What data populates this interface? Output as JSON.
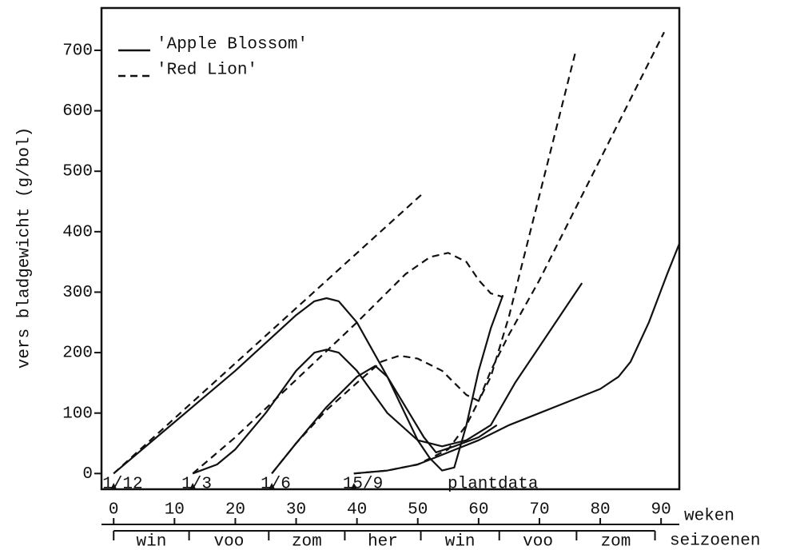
{
  "chart_data": {
    "type": "line",
    "y_label": "vers bladgewicht (g/bol)",
    "x_label": "weken",
    "xlim": [
      -2,
      93
    ],
    "ylim": [
      -26,
      770
    ],
    "xticks": [
      0,
      10,
      20,
      30,
      40,
      50,
      60,
      70,
      80,
      90
    ],
    "yticks": [
      0,
      100,
      200,
      300,
      400,
      500,
      600,
      700
    ],
    "legend": "upper left",
    "color": "#111111",
    "plant_dates": {
      "title": "plantdata",
      "items": [
        {
          "label": "1/12",
          "x": 0
        },
        {
          "label": "1/3",
          "x": 13
        },
        {
          "label": "1/6",
          "x": 26
        },
        {
          "label": "15/9",
          "x": 39.5
        }
      ]
    },
    "seasons": {
      "title": "seizoenen",
      "labels": [
        "win",
        "voo",
        "zom",
        "her",
        "win",
        "voo",
        "zom"
      ],
      "edges": [
        0,
        12.4,
        25.5,
        38,
        50.5,
        63.4,
        76.1,
        89
      ]
    },
    "series": [
      {
        "name": "'Apple Blossom'",
        "style": "solid",
        "curves": [
          {
            "x": [
              0,
              10,
              20,
              30,
              33,
              35,
              37,
              40,
              45,
              50,
              52,
              54,
              56,
              58,
              60,
              62,
              64
            ],
            "values": [
              0,
              85,
              170,
              262,
              285,
              290,
              285,
              250,
              160,
              55,
              25,
              5,
              10,
              80,
              170,
              240,
              295
            ]
          },
          {
            "x": [
              13,
              17,
              20,
              25,
              30,
              33,
              35,
              37,
              40,
              45,
              50,
              54,
              58,
              62,
              66,
              70,
              74,
              77
            ],
            "values": [
              0,
              15,
              40,
              100,
              170,
              200,
              205,
              200,
              170,
              100,
              55,
              45,
              55,
              80,
              150,
              210,
              270,
              315
            ]
          },
          {
            "x": [
              26,
              30,
              35,
              40,
              43,
              45,
              48,
              51,
              53,
              56,
              60,
              63
            ],
            "values": [
              0,
              50,
              110,
              160,
              178,
              160,
              110,
              60,
              35,
              45,
              60,
              80
            ]
          },
          {
            "x": [
              39.5,
              45,
              50,
              55,
              60,
              65,
              70,
              75,
              80,
              83,
              85,
              88,
              91,
              93
            ],
            "values": [
              0,
              5,
              15,
              35,
              55,
              80,
              100,
              120,
              140,
              160,
              185,
              250,
              330,
              380
            ]
          }
        ]
      },
      {
        "name": "'Red Lion'",
        "style": "dashed",
        "curves": [
          {
            "x": [
              0,
              51
            ],
            "values": [
              0,
              465
            ]
          },
          {
            "x": [
              13,
              20,
              30,
              40,
              48,
              52,
              55,
              58,
              60,
              62,
              64
            ],
            "values": [
              0,
              60,
              155,
              250,
              330,
              358,
              365,
              350,
              320,
              298,
              292
            ]
          },
          {
            "x": [
              26,
              30,
              35,
              40,
              44,
              47,
              50,
              54,
              58,
              60,
              62,
              65,
              68,
              72,
              76
            ],
            "values": [
              0,
              50,
              105,
              150,
              185,
              195,
              190,
              170,
              130,
              120,
              160,
              260,
              380,
              540,
              700
            ]
          },
          {
            "x": [
              39.5,
              45,
              50,
              55,
              58,
              60,
              62,
              65,
              70,
              80,
              90.5
            ],
            "values": [
              0,
              5,
              15,
              40,
              80,
              120,
              170,
              230,
              320,
              520,
              730
            ]
          }
        ]
      }
    ]
  }
}
